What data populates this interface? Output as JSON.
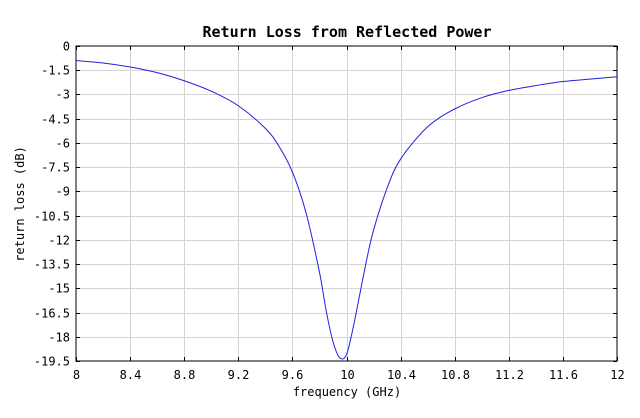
{
  "chart_data": {
    "type": "line",
    "title": "Return Loss from Reflected Power",
    "xlabel": "frequency (GHz)",
    "ylabel": "return loss (dB)",
    "xlim": [
      8,
      12
    ],
    "ylim": [
      -19.5,
      0
    ],
    "grid": true,
    "x_ticks": [
      "8",
      "8.4",
      "8.8",
      "9.2",
      "9.6",
      "10",
      "10.4",
      "10.8",
      "11.2",
      "11.6",
      "12"
    ],
    "y_ticks": [
      "0",
      "-1.5",
      "-3",
      "-4.5",
      "-6",
      "-7.5",
      "-9",
      "-10.5",
      "-12",
      "-13.5",
      "-15",
      "-16.5",
      "-18",
      "-19.5"
    ],
    "colors": {
      "line": "#2020e0",
      "grid": "#d4d4d4",
      "axes": "#000000"
    },
    "series": [
      {
        "x": [
          8.0,
          8.2,
          8.4,
          8.6,
          8.8,
          9.0,
          9.2,
          9.4,
          9.5,
          9.6,
          9.7,
          9.8,
          9.85,
          9.9,
          9.95,
          10.0,
          10.05,
          10.1,
          10.15,
          10.2,
          10.3,
          10.4,
          10.6,
          10.8,
          11.0,
          11.2,
          11.4,
          11.6,
          11.8,
          12.0
        ],
        "y": [
          -0.9,
          -1.05,
          -1.3,
          -1.65,
          -2.15,
          -2.8,
          -3.7,
          -5.1,
          -6.2,
          -7.8,
          -10.3,
          -14.0,
          -16.4,
          -18.3,
          -19.3,
          -19.1,
          -17.4,
          -15.3,
          -13.2,
          -11.4,
          -8.8,
          -7.0,
          -5.0,
          -3.9,
          -3.2,
          -2.75,
          -2.45,
          -2.2,
          -2.05,
          -1.9
        ]
      }
    ]
  }
}
